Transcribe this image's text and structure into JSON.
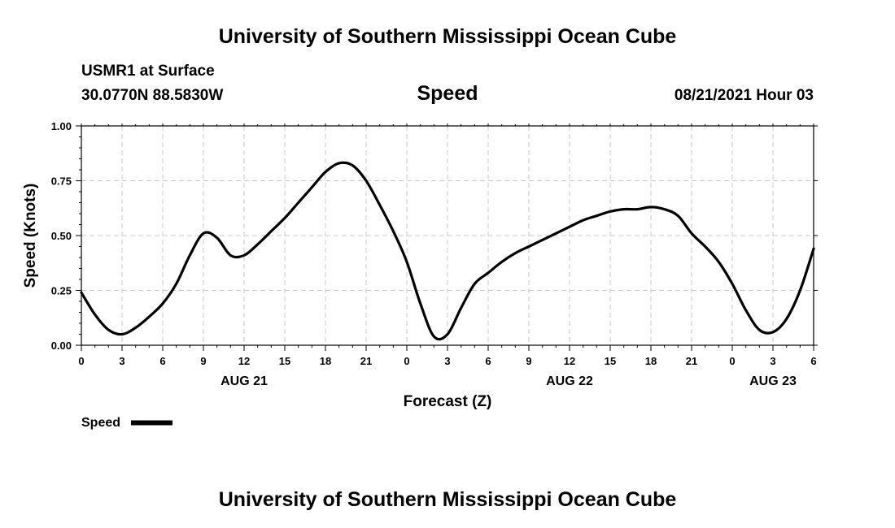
{
  "header": {
    "title_top": "University of Southern Mississippi Ocean Cube",
    "station": "USMR1 at Surface",
    "coords": "30.0770N  88.5830W",
    "date": "08/21/2021 Hour 03",
    "title_bottom": "University of Southern Mississippi Ocean Cube"
  },
  "chart_data": {
    "type": "line",
    "title": "Speed",
    "xlabel": "Forecast (Z)",
    "ylabel": "Speed (Knots)",
    "ylim": [
      0,
      1
    ],
    "xlim": [
      0,
      54
    ],
    "grid": true,
    "legend_position": "bottom-left",
    "y_ticks": [
      "0.00",
      "0.25",
      "0.50",
      "0.75",
      "1.00"
    ],
    "x_ticks": [
      "0",
      "3",
      "6",
      "9",
      "12",
      "15",
      "18",
      "21",
      "0",
      "3",
      "6",
      "9",
      "12",
      "15",
      "18",
      "21",
      "0",
      "3",
      "6"
    ],
    "date_labels": [
      {
        "text": "AUG 21",
        "at_hour": 12
      },
      {
        "text": "AUG 22",
        "at_hour": 36
      },
      {
        "text": "AUG 23",
        "at_hour": 51
      }
    ],
    "series": [
      {
        "name": "Speed",
        "color": "#000000",
        "x": [
          0,
          1,
          2,
          3,
          4,
          5,
          6,
          7,
          8,
          9,
          10,
          11,
          12,
          13,
          14,
          15,
          16,
          17,
          18,
          19,
          20,
          21,
          22,
          23,
          24,
          25,
          26,
          27,
          28,
          29,
          30,
          31,
          32,
          33,
          34,
          35,
          36,
          37,
          38,
          39,
          40,
          41,
          42,
          43,
          44,
          45,
          46,
          47,
          48,
          49,
          50,
          51,
          52,
          53,
          54
        ],
        "y": [
          0.24,
          0.14,
          0.07,
          0.05,
          0.08,
          0.13,
          0.19,
          0.28,
          0.41,
          0.51,
          0.49,
          0.41,
          0.41,
          0.46,
          0.52,
          0.58,
          0.65,
          0.72,
          0.79,
          0.83,
          0.82,
          0.75,
          0.64,
          0.52,
          0.38,
          0.19,
          0.04,
          0.05,
          0.17,
          0.28,
          0.33,
          0.38,
          0.42,
          0.45,
          0.48,
          0.51,
          0.54,
          0.57,
          0.59,
          0.61,
          0.62,
          0.62,
          0.63,
          0.62,
          0.59,
          0.51,
          0.45,
          0.38,
          0.28,
          0.16,
          0.07,
          0.06,
          0.12,
          0.25,
          0.44
        ]
      }
    ]
  }
}
